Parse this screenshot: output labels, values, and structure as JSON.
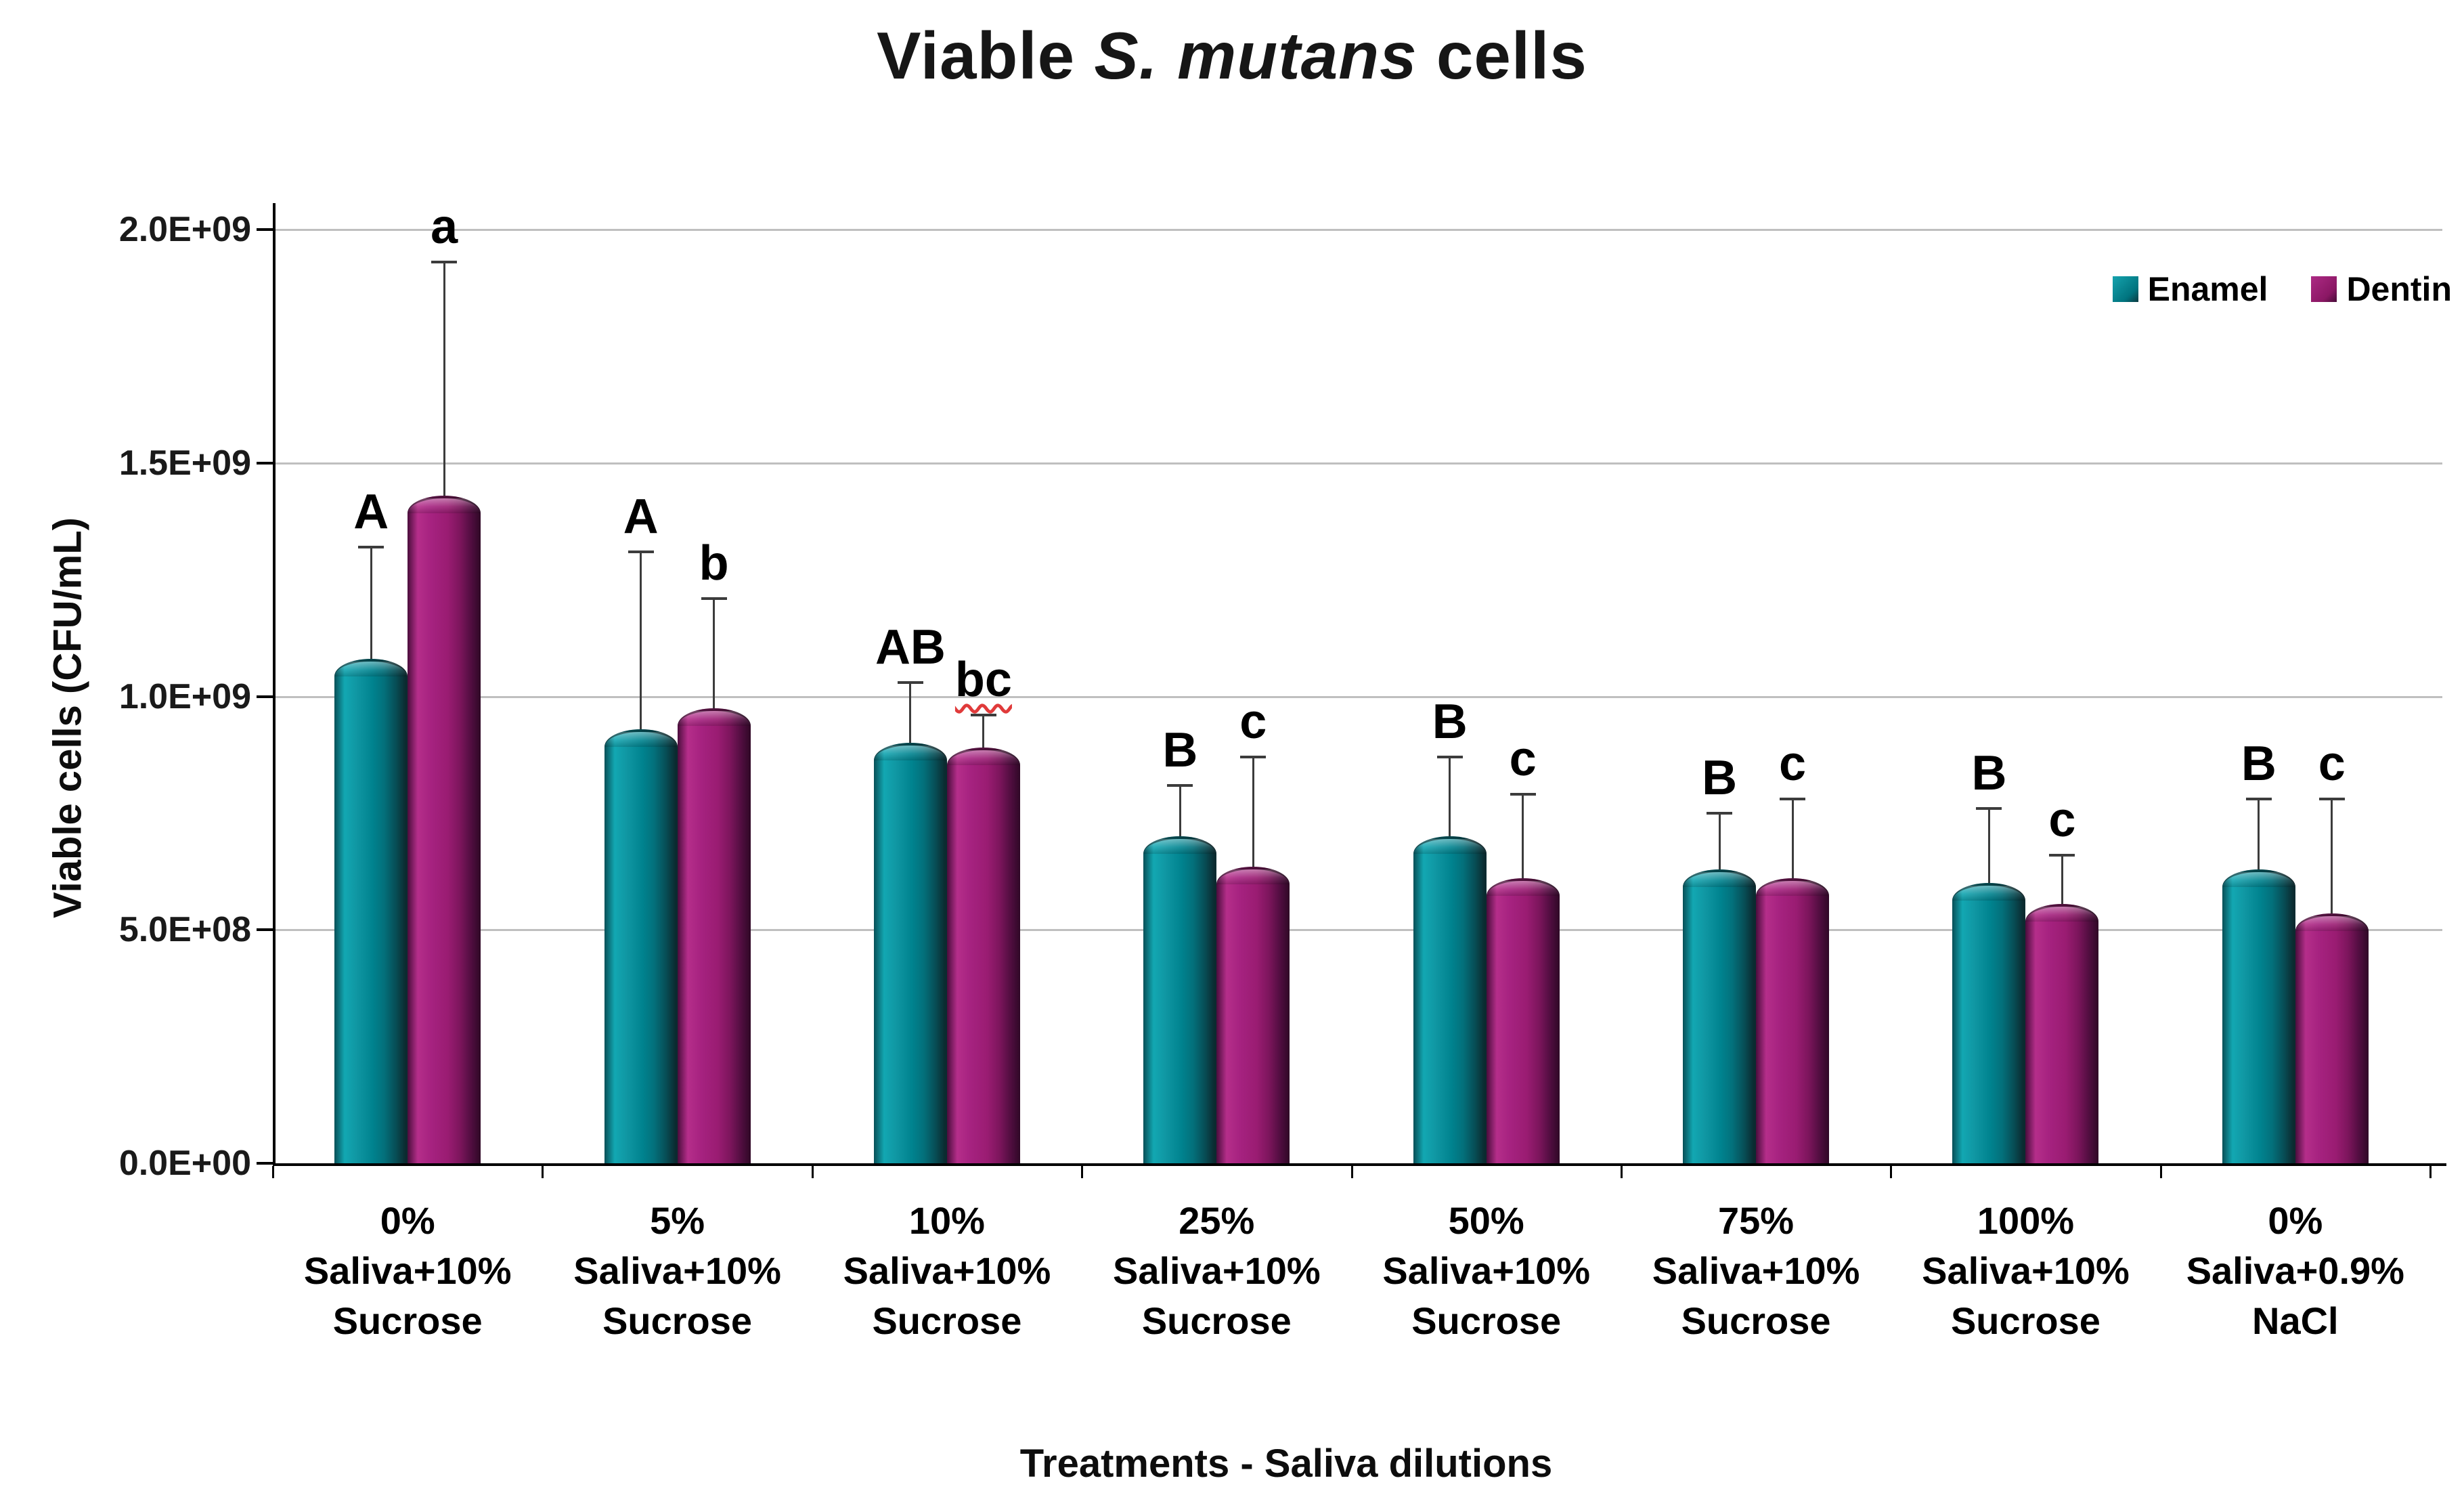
{
  "title": {
    "prefix": "Viable ",
    "species": "S. mutans",
    "suffix": " cells"
  },
  "y_axis": {
    "label": "Viable cells (CFU/mL)",
    "ticks": [
      {
        "label": "2.0E+09",
        "value": 2000000000.0
      },
      {
        "label": "1.5E+09",
        "value": 1500000000.0
      },
      {
        "label": "1.0E+09",
        "value": 1000000000.0
      },
      {
        "label": "5.0E+08",
        "value": 500000000.0
      },
      {
        "label": "0.0E+00",
        "value": 0
      }
    ]
  },
  "x_axis": {
    "label": "Treatments - Saliva dilutions"
  },
  "legend": {
    "items": [
      {
        "name": "Enamel",
        "color": "#00838F"
      },
      {
        "name": "Dentin",
        "color": "#9A1C72"
      }
    ]
  },
  "chart_data": {
    "type": "bar",
    "title": "Viable S. mutans cells",
    "xlabel": "Treatments - Saliva dilutions",
    "ylabel": "Viable cells (CFU/mL)",
    "ylim": [
      0,
      2000000000.0
    ],
    "grid": true,
    "legend_position": "top-right",
    "categories": [
      [
        "0%",
        "Saliva+10%",
        "Sucrose"
      ],
      [
        "5%",
        "Saliva+10%",
        "Sucrose"
      ],
      [
        "10%",
        "Saliva+10%",
        "Sucrose"
      ],
      [
        "25%",
        "Saliva+10%",
        "Sucrose"
      ],
      [
        "50%",
        "Saliva+10%",
        "Sucrose"
      ],
      [
        "75%",
        "Saliva+10%",
        "Sucrose"
      ],
      [
        "100%",
        "Saliva+10%",
        "Sucrose"
      ],
      [
        "0%",
        "Saliva+0.9%",
        "NaCl"
      ]
    ],
    "series": [
      {
        "name": "Enamel",
        "color": "#00838F",
        "values": [
          1080000000.0,
          930000000.0,
          900000000.0,
          700000000.0,
          700000000.0,
          630000000.0,
          600000000.0,
          630000000.0
        ],
        "error_up": [
          240000000.0,
          380000000.0,
          130000000.0,
          110000000.0,
          170000000.0,
          120000000.0,
          160000000.0,
          150000000.0
        ],
        "letters": [
          "A",
          "A",
          "AB",
          "B",
          "B",
          "B",
          "B",
          "B"
        ]
      },
      {
        "name": "Dentin",
        "color": "#9A1C72",
        "values": [
          1430000000.0,
          975000000.0,
          890000000.0,
          635000000.0,
          610000000.0,
          610000000.0,
          555000000.0,
          535000000.0
        ],
        "error_up": [
          500000000.0,
          235000000.0,
          70000000.0,
          235000000.0,
          180000000.0,
          170000000.0,
          105000000.0,
          245000000.0
        ],
        "letters": [
          "a",
          "b",
          "bc",
          "c",
          "c",
          "c",
          "c",
          "c"
        ]
      }
    ],
    "wavy_underline_letter": {
      "series": "Dentin",
      "category_index": 2
    }
  }
}
